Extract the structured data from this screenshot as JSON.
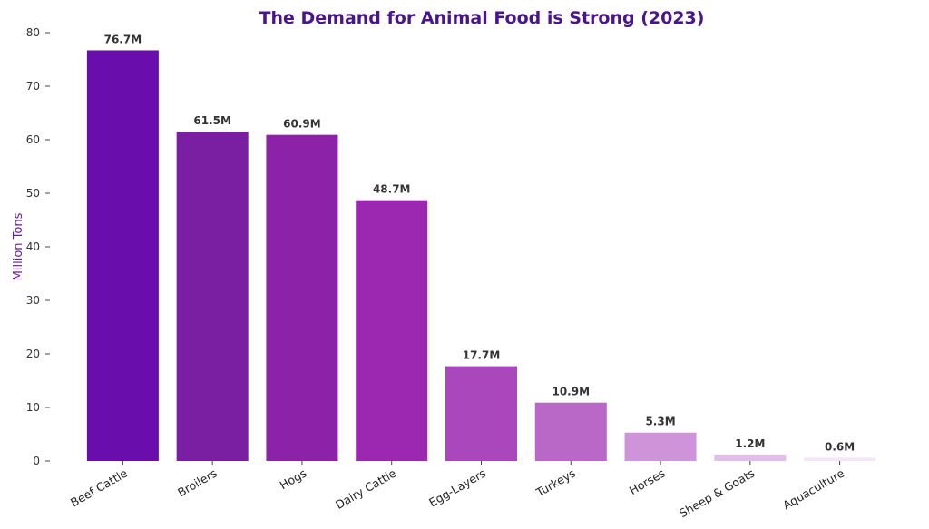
{
  "chart_data": {
    "type": "bar",
    "title": "The Demand for Animal Food is Strong (2023)",
    "xlabel": "",
    "ylabel": "Million Tons",
    "ylim": [
      0,
      80
    ],
    "yticks": [
      0,
      10,
      20,
      30,
      40,
      50,
      60,
      70,
      80
    ],
    "categories": [
      "Beef Cattle",
      "Broilers",
      "Hogs",
      "Dairy Cattle",
      "Egg-Layers",
      "Turkeys",
      "Horses",
      "Sheep & Goats",
      "Aquaculture"
    ],
    "values": [
      76.7,
      61.5,
      60.9,
      48.7,
      17.7,
      10.9,
      5.3,
      1.2,
      0.6
    ],
    "value_labels": [
      "76.7M",
      "61.5M",
      "60.9M",
      "48.7M",
      "17.7M",
      "10.9M",
      "5.3M",
      "1.2M",
      "0.6M"
    ],
    "bar_colors": [
      "#6a0dad",
      "#7a1fa2",
      "#8b22a8",
      "#9c27b0",
      "#ab47bc",
      "#ba68c8",
      "#ce93d8",
      "#e1bee7",
      "#f3e5f5"
    ],
    "title_color": "#4a148c",
    "ylabel_color": "#6a1b9a",
    "grid": false
  }
}
